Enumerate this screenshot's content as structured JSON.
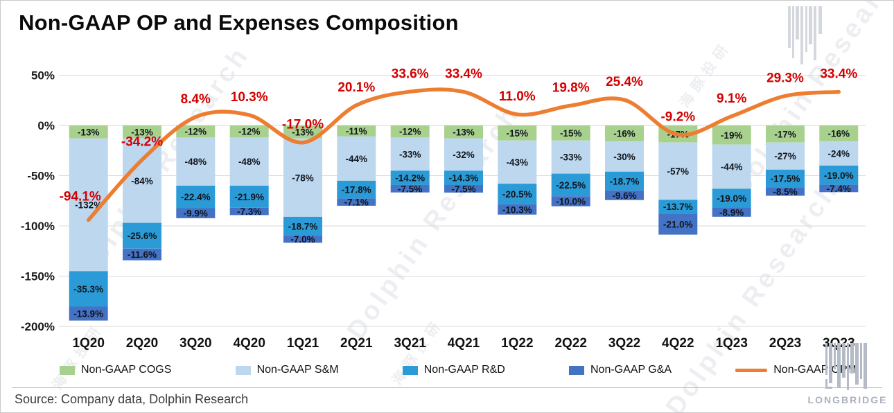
{
  "title": "Non-GAAP OP and Expenses Composition",
  "source": "Source: Company data, Dolphin Research",
  "watermark": {
    "en": "Dolphin Research",
    "cn": "海豚投研"
  },
  "logo": {
    "text": "LONGBRIDGE"
  },
  "legend": [
    {
      "label": "Non-GAAP COGS",
      "color": "#a9d18e",
      "type": "box"
    },
    {
      "label": "Non-GAAP S&M",
      "color": "#bdd7ee",
      "type": "box"
    },
    {
      "label": "Non-GAAP R&D",
      "color": "#2b9bd7",
      "type": "box"
    },
    {
      "label": "Non-GAAP G&A",
      "color": "#4472c4",
      "type": "box"
    },
    {
      "label": "Non-GAAP OPM",
      "color": "#ed7d31",
      "type": "line"
    }
  ],
  "chart_data": {
    "type": "stacked-bar-with-line",
    "title": "Non-GAAP OP and Expenses Composition",
    "categories": [
      "1Q20",
      "2Q20",
      "3Q20",
      "4Q20",
      "1Q21",
      "2Q21",
      "3Q21",
      "4Q21",
      "1Q22",
      "2Q22",
      "3Q22",
      "4Q22",
      "1Q23",
      "2Q23",
      "3Q23"
    ],
    "series": [
      {
        "name": "Non-GAAP COGS",
        "color": "#a9d18e",
        "values": [
          -13,
          -13,
          -12,
          -12,
          -13,
          -11,
          -12,
          -13,
          -15,
          -15,
          -16,
          -17,
          -19,
          -17,
          -16
        ],
        "labels": [
          "-13%",
          "-13%",
          "-12%",
          "-12%",
          "-13%",
          "-11%",
          "-12%",
          "-13%",
          "-15%",
          "-15%",
          "-16%",
          "-17%",
          "-19%",
          "-17%",
          "-16%"
        ]
      },
      {
        "name": "Non-GAAP S&M",
        "color": "#bdd7ee",
        "values": [
          -132,
          -84,
          -48,
          -48,
          -78,
          -44,
          -33,
          -32,
          -43,
          -33,
          -30,
          -57,
          -44,
          -27,
          -24
        ],
        "labels": [
          "-132%",
          "-84%",
          "-48%",
          "-48%",
          "-78%",
          "-44%",
          "-33%",
          "-32%",
          "-43%",
          "-33%",
          "-30%",
          "-57%",
          "-44%",
          "-27%",
          "-24%"
        ]
      },
      {
        "name": "Non-GAAP R&D",
        "color": "#2b9bd7",
        "values": [
          -35.3,
          -25.6,
          -22.4,
          -21.9,
          -18.7,
          -17.8,
          -14.2,
          -14.3,
          -20.5,
          -22.5,
          -18.7,
          -13.7,
          -19.0,
          -17.5,
          -19.0
        ],
        "labels": [
          "-35.3%",
          "-25.6%",
          "-22.4%",
          "-21.9%",
          "-18.7%",
          "-17.8%",
          "-14.2%",
          "-14.3%",
          "-20.5%",
          "-22.5%",
          "-18.7%",
          "-13.7%",
          "-19.0%",
          "-17.5%",
          "-19.0%"
        ]
      },
      {
        "name": "Non-GAAP G&A",
        "color": "#4472c4",
        "values": [
          -13.9,
          -11.6,
          -9.9,
          -7.3,
          -7.0,
          -7.1,
          -7.5,
          -7.5,
          -10.3,
          -10.0,
          -9.6,
          -21.0,
          -8.9,
          -8.5,
          -7.4
        ],
        "labels": [
          "-13.9%",
          "-11.6%",
          "-9.9%",
          "-7.3%",
          "-7.0%",
          "-7.1%",
          "-7.5%",
          "-7.5%",
          "-10.3%",
          "-10.0%",
          "-9.6%",
          "-21.0%",
          "-8.9%",
          "-8.5%",
          "-7.4%"
        ]
      }
    ],
    "line": {
      "name": "Non-GAAP OPM",
      "color": "#ed7d31",
      "label_color": "#d30000",
      "values": [
        -94.1,
        -34.2,
        8.4,
        10.3,
        -17.0,
        20.1,
        33.6,
        33.4,
        11.0,
        19.8,
        25.4,
        -9.2,
        9.1,
        29.3,
        33.4
      ],
      "labels": [
        "-94.1%",
        "-34.2%",
        "8.4%",
        "10.3%",
        "-17.0%",
        "20.1%",
        "33.6%",
        "33.4%",
        "11.0%",
        "19.8%",
        "25.4%",
        "-9.2%",
        "9.1%",
        "29.3%",
        "33.4%"
      ]
    },
    "y_axis": {
      "ticks": [
        50,
        0,
        -50,
        -100,
        -150,
        -200
      ],
      "tick_labels": [
        "50%",
        "0%",
        "-50%",
        "-100%",
        "-150%",
        "-200%"
      ],
      "ylim": [
        -200,
        50
      ],
      "grid": true
    },
    "legend_position": "bottom"
  }
}
